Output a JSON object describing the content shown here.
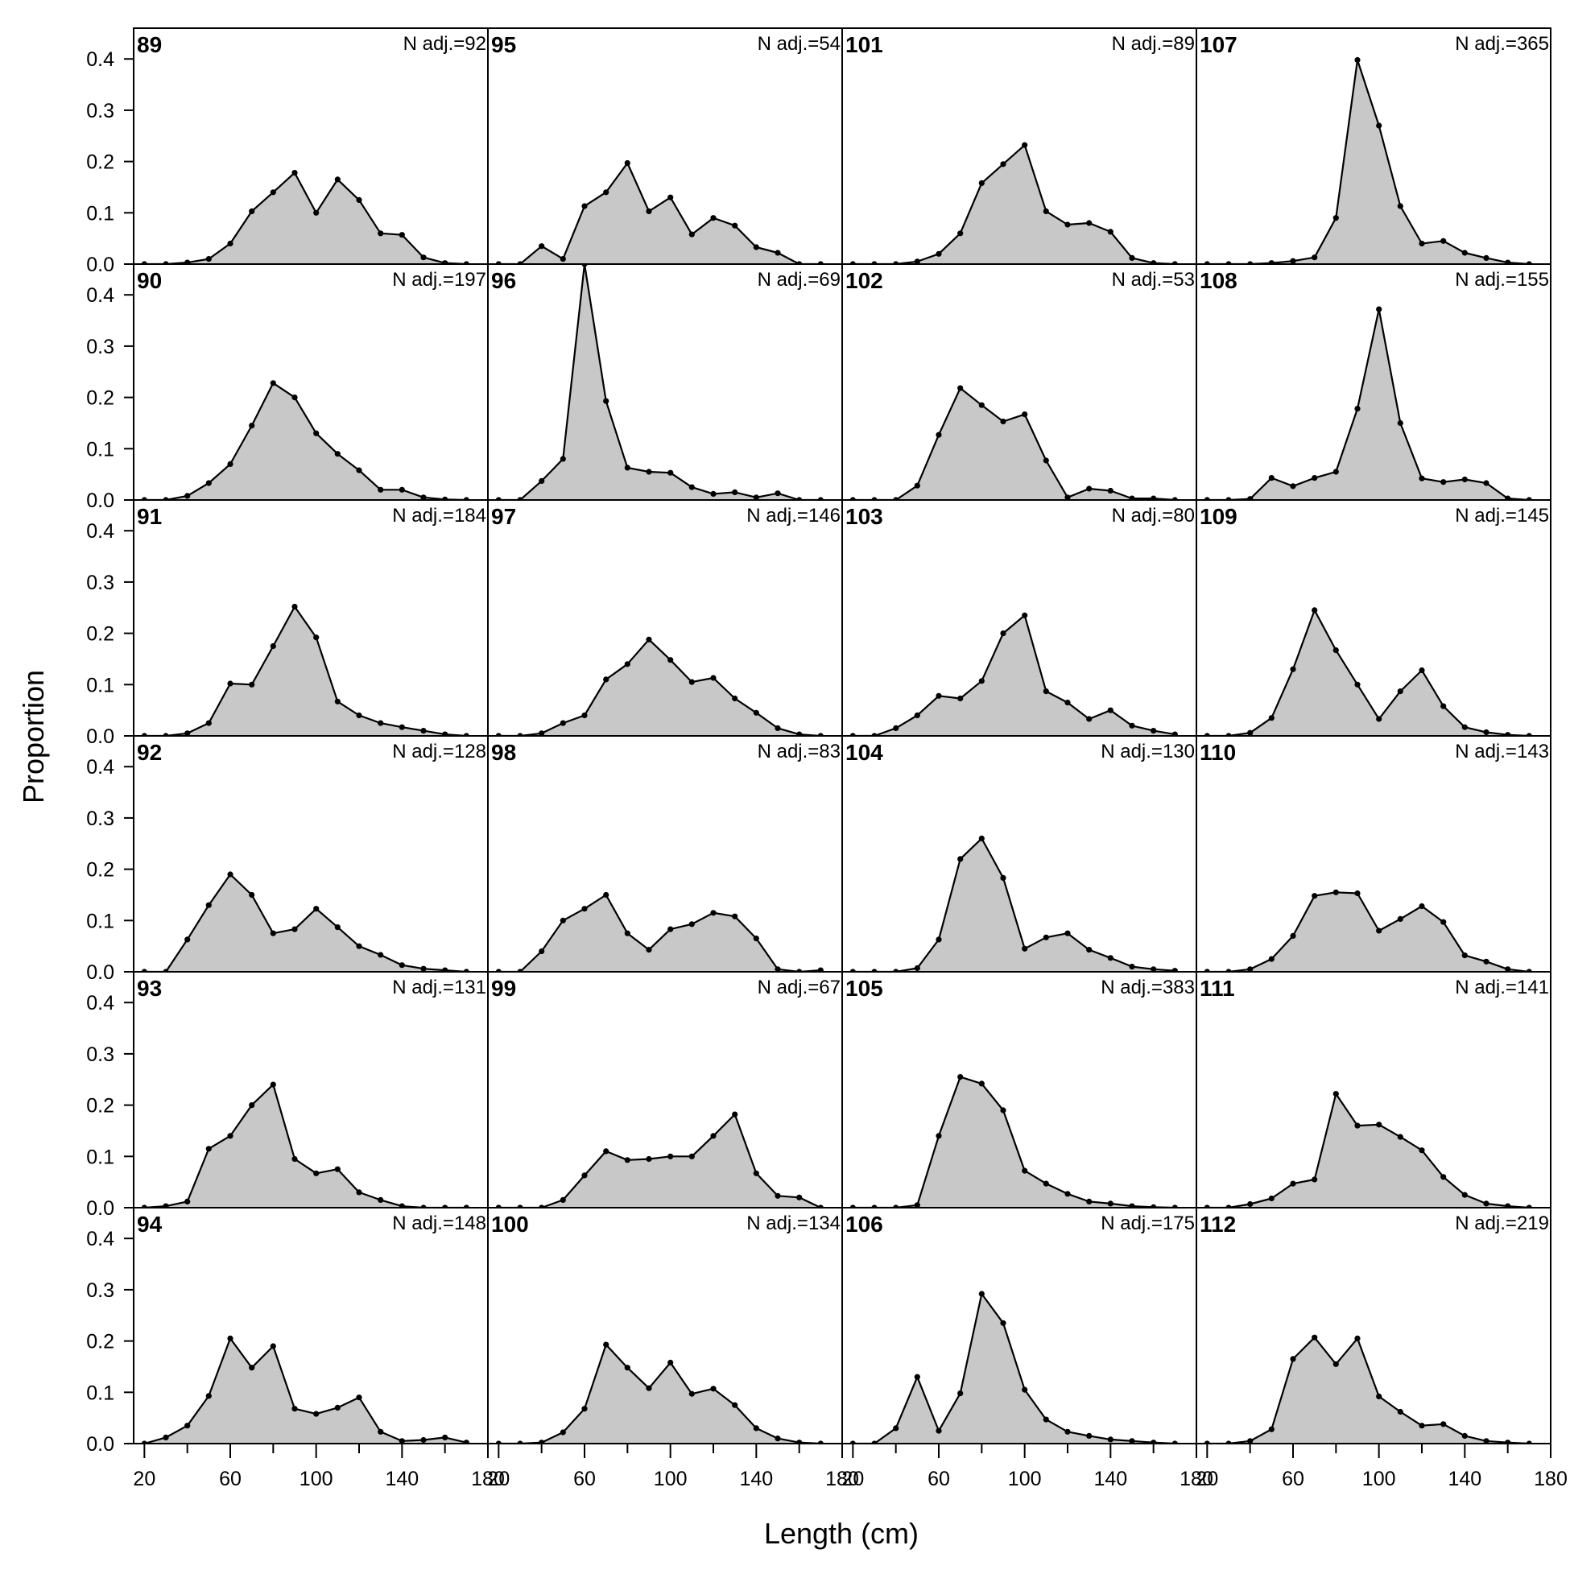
{
  "chart_data": {
    "type": "area",
    "layout": {
      "rows": 6,
      "cols": 4,
      "order": "column-major"
    },
    "xlabel": "Length (cm)",
    "ylabel": "Proportion",
    "xlim": [
      15,
      180
    ],
    "ylim": [
      0,
      0.46
    ],
    "x_ticks": [
      20,
      60,
      100,
      140,
      180
    ],
    "x_ticks_minor": [
      40,
      80,
      120,
      160
    ],
    "y_ticks": [
      0.0,
      0.1,
      0.2,
      0.3,
      0.4
    ],
    "y_tick_labels": [
      "0.0",
      "0.1",
      "0.2",
      "0.3",
      "0.4"
    ],
    "x": [
      20,
      30,
      40,
      50,
      60,
      70,
      80,
      90,
      100,
      110,
      120,
      130,
      140,
      150,
      160,
      170
    ],
    "fill_color": "#c8c8c8",
    "line_color": "#000000",
    "panels": [
      {
        "id": "89",
        "n_label": "N adj.=92",
        "values": [
          0,
          0,
          0.003,
          0.01,
          0.04,
          0.103,
          0.14,
          0.178,
          0.1,
          0.165,
          0.125,
          0.06,
          0.057,
          0.013,
          0.002,
          0
        ]
      },
      {
        "id": "90",
        "n_label": "N adj.=197",
        "values": [
          0,
          0,
          0.008,
          0.033,
          0.07,
          0.145,
          0.228,
          0.2,
          0.13,
          0.09,
          0.058,
          0.02,
          0.02,
          0.005,
          0.001,
          0
        ]
      },
      {
        "id": "91",
        "n_label": "N adj.=184",
        "values": [
          0,
          0,
          0.005,
          0.025,
          0.102,
          0.1,
          0.175,
          0.252,
          0.192,
          0.067,
          0.04,
          0.025,
          0.017,
          0.01,
          0.003,
          0
        ]
      },
      {
        "id": "92",
        "n_label": "N adj.=128",
        "values": [
          0,
          0,
          0.063,
          0.13,
          0.19,
          0.15,
          0.075,
          0.083,
          0.123,
          0.087,
          0.05,
          0.033,
          0.013,
          0.006,
          0.003,
          0
        ]
      },
      {
        "id": "93",
        "n_label": "N adj.=131",
        "values": [
          0,
          0.003,
          0.012,
          0.115,
          0.14,
          0.2,
          0.24,
          0.095,
          0.067,
          0.075,
          0.03,
          0.015,
          0.003,
          0,
          0,
          0
        ]
      },
      {
        "id": "94",
        "n_label": "N adj.=148",
        "values": [
          0,
          0.012,
          0.035,
          0.093,
          0.205,
          0.148,
          0.19,
          0.068,
          0.058,
          0.07,
          0.09,
          0.023,
          0.005,
          0.007,
          0.012,
          0.002
        ]
      },
      {
        "id": "95",
        "n_label": "N adj.=54",
        "values": [
          0,
          0,
          0.035,
          0.01,
          0.113,
          0.14,
          0.197,
          0.103,
          0.13,
          0.058,
          0.09,
          0.075,
          0.033,
          0.022,
          0,
          0
        ]
      },
      {
        "id": "96",
        "n_label": "N adj.=69",
        "values": [
          0,
          0,
          0.037,
          0.08,
          0.46,
          0.193,
          0.063,
          0.055,
          0.053,
          0.025,
          0.012,
          0.015,
          0.005,
          0.013,
          0,
          0
        ]
      },
      {
        "id": "97",
        "n_label": "N adj.=146",
        "values": [
          0,
          0,
          0.005,
          0.025,
          0.04,
          0.11,
          0.14,
          0.188,
          0.148,
          0.105,
          0.113,
          0.073,
          0.045,
          0.015,
          0.003,
          0
        ]
      },
      {
        "id": "98",
        "n_label": "N adj.=83",
        "values": [
          0,
          0,
          0.04,
          0.1,
          0.123,
          0.15,
          0.075,
          0.043,
          0.083,
          0.093,
          0.115,
          0.108,
          0.065,
          0.005,
          0,
          0.003
        ]
      },
      {
        "id": "99",
        "n_label": "N adj.=67",
        "values": [
          0,
          0,
          0,
          0.015,
          0.063,
          0.11,
          0.093,
          0.095,
          0.1,
          0.1,
          0.14,
          0.182,
          0.067,
          0.023,
          0.02,
          0
        ]
      },
      {
        "id": "100",
        "n_label": "N adj.=134",
        "values": [
          0,
          0,
          0.002,
          0.022,
          0.068,
          0.193,
          0.148,
          0.108,
          0.158,
          0.097,
          0.107,
          0.075,
          0.03,
          0.01,
          0.002,
          0
        ]
      },
      {
        "id": "101",
        "n_label": "N adj.=89",
        "values": [
          0,
          0,
          0,
          0.005,
          0.02,
          0.06,
          0.158,
          0.195,
          0.232,
          0.103,
          0.077,
          0.08,
          0.063,
          0.012,
          0.002,
          0
        ]
      },
      {
        "id": "102",
        "n_label": "N adj.=53",
        "values": [
          0,
          0,
          0,
          0.028,
          0.127,
          0.218,
          0.185,
          0.153,
          0.167,
          0.077,
          0.005,
          0.022,
          0.018,
          0.003,
          0.003,
          0
        ]
      },
      {
        "id": "103",
        "n_label": "N adj.=80",
        "values": [
          0,
          0,
          0.015,
          0.04,
          0.078,
          0.073,
          0.107,
          0.2,
          0.235,
          0.087,
          0.065,
          0.033,
          0.05,
          0.02,
          0.01,
          0.003
        ]
      },
      {
        "id": "104",
        "n_label": "N adj.=130",
        "values": [
          0,
          0,
          0,
          0.007,
          0.063,
          0.22,
          0.26,
          0.183,
          0.045,
          0.067,
          0.075,
          0.043,
          0.027,
          0.01,
          0.005,
          0.002
        ]
      },
      {
        "id": "105",
        "n_label": "N adj.=383",
        "values": [
          0,
          0,
          0,
          0.005,
          0.14,
          0.255,
          0.242,
          0.19,
          0.072,
          0.047,
          0.027,
          0.012,
          0.008,
          0.003,
          0.001,
          0
        ]
      },
      {
        "id": "106",
        "n_label": "N adj.=175",
        "values": [
          0,
          0,
          0.03,
          0.13,
          0.025,
          0.098,
          0.292,
          0.235,
          0.105,
          0.047,
          0.023,
          0.015,
          0.008,
          0.005,
          0.002,
          0
        ]
      },
      {
        "id": "107",
        "n_label": "N adj.=365",
        "values": [
          0,
          0,
          0,
          0.002,
          0.006,
          0.013,
          0.09,
          0.398,
          0.27,
          0.113,
          0.04,
          0.045,
          0.022,
          0.012,
          0.003,
          0
        ]
      },
      {
        "id": "108",
        "n_label": "N adj.=155",
        "values": [
          0,
          0,
          0.002,
          0.043,
          0.027,
          0.043,
          0.055,
          0.178,
          0.372,
          0.15,
          0.042,
          0.035,
          0.04,
          0.033,
          0.003,
          0
        ]
      },
      {
        "id": "109",
        "n_label": "N adj.=145",
        "values": [
          0,
          0,
          0.006,
          0.035,
          0.13,
          0.245,
          0.167,
          0.1,
          0.033,
          0.087,
          0.128,
          0.058,
          0.017,
          0.007,
          0.002,
          0
        ]
      },
      {
        "id": "110",
        "n_label": "N adj.=143",
        "values": [
          0,
          0,
          0.005,
          0.025,
          0.07,
          0.148,
          0.155,
          0.153,
          0.08,
          0.103,
          0.128,
          0.097,
          0.032,
          0.02,
          0.005,
          0
        ]
      },
      {
        "id": "111",
        "n_label": "N adj.=141",
        "values": [
          0,
          0,
          0.007,
          0.018,
          0.047,
          0.055,
          0.222,
          0.16,
          0.162,
          0.138,
          0.112,
          0.06,
          0.025,
          0.008,
          0.003,
          0
        ]
      },
      {
        "id": "112",
        "n_label": "N adj.=219",
        "values": [
          0,
          0,
          0.005,
          0.028,
          0.165,
          0.207,
          0.155,
          0.205,
          0.092,
          0.062,
          0.035,
          0.038,
          0.015,
          0.005,
          0.002,
          0
        ]
      }
    ]
  }
}
